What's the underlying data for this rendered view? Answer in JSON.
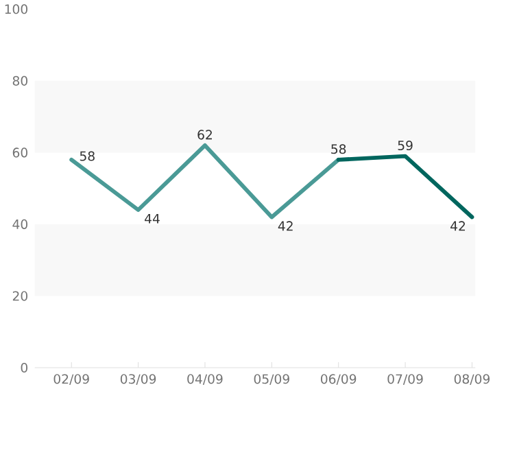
{
  "chart_data": {
    "type": "line",
    "categories": [
      "02/09",
      "03/09",
      "04/09",
      "05/09",
      "06/09",
      "07/09",
      "08/09"
    ],
    "series": [
      {
        "color": "#4a9a96",
        "values": [
          58,
          44,
          62,
          42,
          58,
          null,
          null
        ],
        "value_labels": [
          "58",
          "44",
          "62",
          "42",
          "58",
          null,
          null
        ]
      },
      {
        "color": "#00665e",
        "values": [
          null,
          null,
          null,
          null,
          58,
          59,
          42
        ],
        "value_labels": [
          null,
          null,
          null,
          null,
          null,
          "59",
          "42"
        ]
      }
    ],
    "ylim": [
      0,
      100
    ],
    "yticks": [
      0,
      20,
      40,
      60,
      80,
      100
    ],
    "bands": [
      {
        "axis": "y",
        "from": 20,
        "to": 40,
        "color": "#f8f8f8"
      },
      {
        "axis": "y",
        "from": 60,
        "to": 80,
        "color": "#f8f8f8"
      }
    ]
  }
}
